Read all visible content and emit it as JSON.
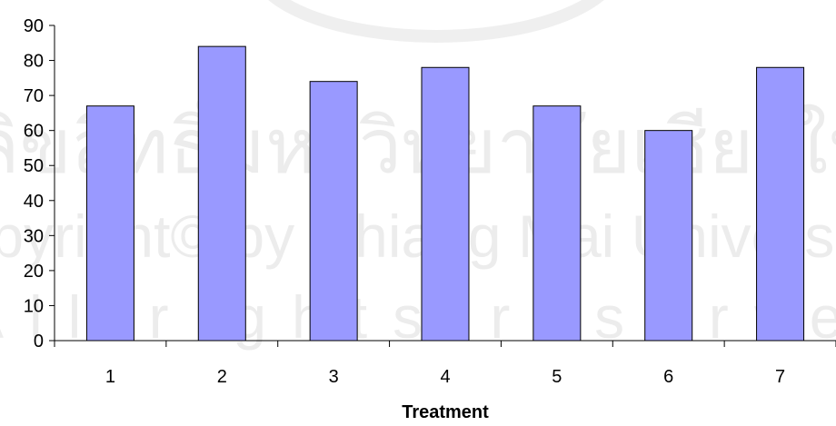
{
  "chart_data": {
    "type": "bar",
    "title": "",
    "xlabel": "Treatment",
    "ylabel": "",
    "categories": [
      "1",
      "2",
      "3",
      "4",
      "5",
      "6",
      "7"
    ],
    "values": [
      67,
      84,
      74,
      78,
      67,
      60,
      78
    ],
    "ylim": [
      0,
      90
    ],
    "yticks": [
      "0",
      "10",
      "20",
      "30",
      "40",
      "50",
      "60",
      "70",
      "80",
      "90"
    ],
    "grid": false,
    "legend": "none",
    "colors": {
      "bar_fill": "#9999ff",
      "bar_stroke": "#000000"
    }
  },
  "watermark": {
    "line1": "ลิขสิทธิ์มหาวิทยาลัยเชียงใหม่",
    "line2": "Copyright© by Chiang Mai University",
    "line3": "All rights reserved"
  }
}
